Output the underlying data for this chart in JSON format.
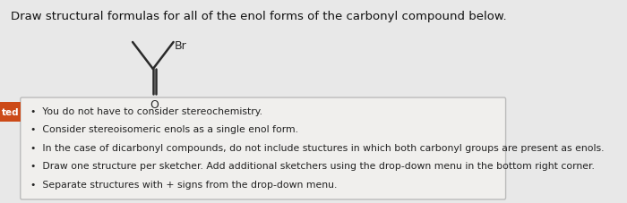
{
  "title": "Draw structural formulas for all of the enol forms of the carbonyl compound below.",
  "title_fontsize": 9.5,
  "title_color": "#111111",
  "background_color": "#e8e8e8",
  "box_background": "#f0efed",
  "box_edge_color": "#bbbbbb",
  "bullet_points": [
    "You do not have to consider stereochemistry.",
    "Consider stereoisomeric enols as a single enol form.",
    "In the case of dicarbonyl compounds, do not include stuctures in which both carbonyl groups are present as enols.",
    "Draw one structure per sketcher. Add additional sketchers using the drop-down menu in the bottom right corner.",
    "Separate structures with + signs from the drop-down menu."
  ],
  "bullet_fontsize": 7.8,
  "tab_label": "ted",
  "tab_color": "#cc4a18",
  "tab_text_color": "#ffffff",
  "br_label": "Br",
  "o_label": "O",
  "bond_color": "#2a2a2a"
}
